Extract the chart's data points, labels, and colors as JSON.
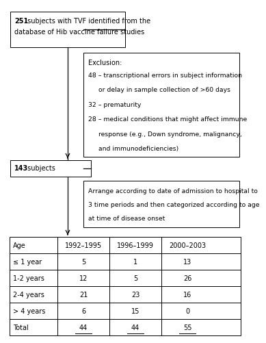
{
  "box1_bold": "251",
  "box1_rest": " subjects with TVF identified from the",
  "box1_line2": "database of Hib vaccine failure studies",
  "box2_title": "Exclusion:",
  "box2_lines": [
    "48 – transcriptional errors in subject information",
    "     or delay in sample collection of >60 days",
    "32 – prematurity",
    "28 – medical conditions that might affect immune",
    "     response (e.g., Down syndrome, malignancy,",
    "     and immunodeficiencies)"
  ],
  "box3_bold": "143",
  "box3_rest": " subjects",
  "box4_lines": [
    "Arrange according to date of admission to hospital to",
    "3 time periods and then categorized according to age",
    "at time of disease onset"
  ],
  "table_headers": [
    "Age",
    "1992–1995",
    "1996–1999",
    "2000–2003"
  ],
  "table_rows": [
    [
      "≤ 1 year",
      "5",
      "1",
      "13"
    ],
    [
      "1-2 years",
      "12",
      "5",
      "26"
    ],
    [
      "2-4 years",
      "21",
      "23",
      "16"
    ],
    [
      "> 4 years",
      "6",
      "15",
      "0"
    ],
    [
      "Total",
      "44",
      "44",
      "55"
    ]
  ],
  "total_row_index": 4,
  "bg_color": "#ffffff",
  "ec": "#000000",
  "tc": "#000000",
  "fs": 7.0
}
